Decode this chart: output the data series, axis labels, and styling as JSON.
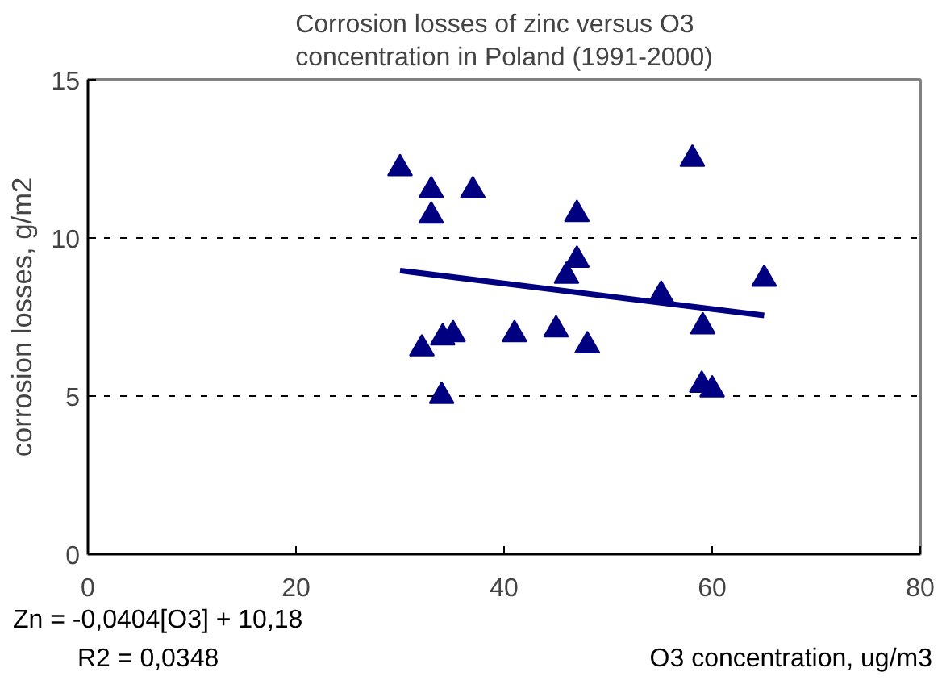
{
  "chart_data": {
    "type": "scatter",
    "title": "Corrosion losses of zinc versus O3\nconcentration in Poland (1991-2000)",
    "xlabel": "O3 concentration, ug/m3",
    "ylabel": "corrosion losses, g/m2",
    "xlim": [
      0,
      80
    ],
    "xticks": [
      0,
      20,
      40,
      60,
      80
    ],
    "ylim": [
      0,
      15
    ],
    "yticks": [
      0,
      5,
      10,
      15
    ],
    "grid": "y",
    "annotations": [
      "Zn = -0,0404[O3] + 10,18",
      "R2 = 0,0348"
    ],
    "series": [
      {
        "color": "#000080",
        "marker": "triangle",
        "x": [
          30.0,
          33.0,
          33.0,
          37.0,
          47.0,
          47.0,
          46.0,
          55.1,
          58.1,
          65.0,
          59.1,
          32.1,
          34.1,
          35.1,
          41.0,
          45.0,
          48.0,
          34.0,
          59.0,
          60.0
        ],
        "values": [
          12.2,
          11.5,
          10.7,
          11.5,
          10.75,
          9.3,
          8.8,
          8.2,
          12.5,
          8.7,
          7.2,
          6.5,
          6.85,
          6.95,
          6.95,
          7.1,
          6.6,
          5.0,
          5.35,
          5.2
        ]
      },
      {
        "type": "line",
        "color": "#000080",
        "x": [
          30,
          65
        ],
        "values": [
          8.97,
          7.55
        ]
      }
    ]
  }
}
